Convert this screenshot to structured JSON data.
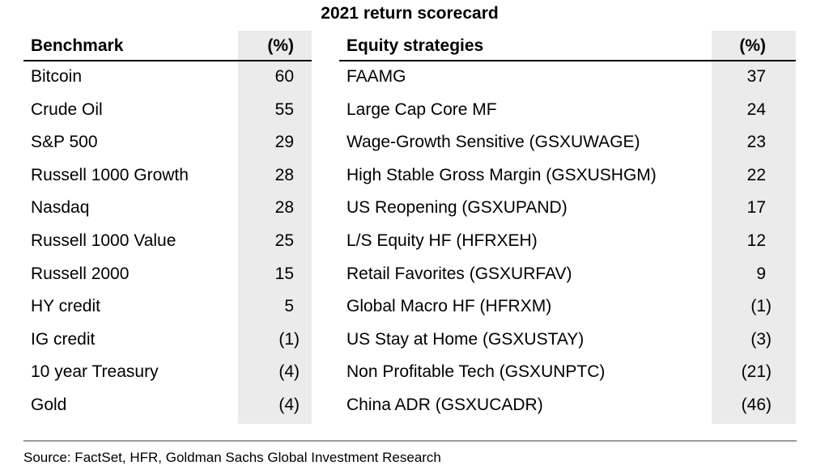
{
  "title": "2021 return scorecard",
  "left_table": {
    "header": {
      "name": "Benchmark",
      "value": "(%)"
    },
    "rows": [
      {
        "name": "Bitcoin",
        "value": "60"
      },
      {
        "name": "Crude Oil",
        "value": "55"
      },
      {
        "name": "S&P 500",
        "value": "29"
      },
      {
        "name": "Russell 1000 Growth",
        "value": "28"
      },
      {
        "name": "Nasdaq",
        "value": "28"
      },
      {
        "name": "Russell 1000 Value",
        "value": "25"
      },
      {
        "name": "Russell 2000",
        "value": "15"
      },
      {
        "name": "HY credit",
        "value": "5"
      },
      {
        "name": "IG credit",
        "value": "(1)"
      },
      {
        "name": "10 year Treasury",
        "value": "(4)"
      },
      {
        "name": "Gold",
        "value": "(4)"
      }
    ]
  },
  "right_table": {
    "header": {
      "name": "Equity strategies",
      "value": "(%)"
    },
    "rows": [
      {
        "name": "FAAMG",
        "value": "37"
      },
      {
        "name": "Large Cap Core MF",
        "value": "24"
      },
      {
        "name": "Wage-Growth Sensitive (GSXUWAGE)",
        "value": "23"
      },
      {
        "name": "High Stable Gross Margin (GSXUSHGM)",
        "value": "22"
      },
      {
        "name": "US Reopening (GSXUPAND)",
        "value": "17"
      },
      {
        "name": "L/S Equity HF (HFRXEH)",
        "value": "12"
      },
      {
        "name": "Retail Favorites (GSXURFAV)",
        "value": "9"
      },
      {
        "name": "Global Macro HF (HFRXM)",
        "value": "(1)"
      },
      {
        "name": "US Stay at Home (GSXUSTAY)",
        "value": "(3)"
      },
      {
        "name": "Non Profitable Tech (GSXUNPTC)",
        "value": "(21)"
      },
      {
        "name": "China ADR (GSXUCADR)",
        "value": "(46)"
      }
    ]
  },
  "source": "Source: FactSet, HFR, Goldman Sachs Global Investment Research",
  "colors": {
    "value_column_shading": "#ebebeb",
    "footer_rule": "#9a9a9a"
  }
}
